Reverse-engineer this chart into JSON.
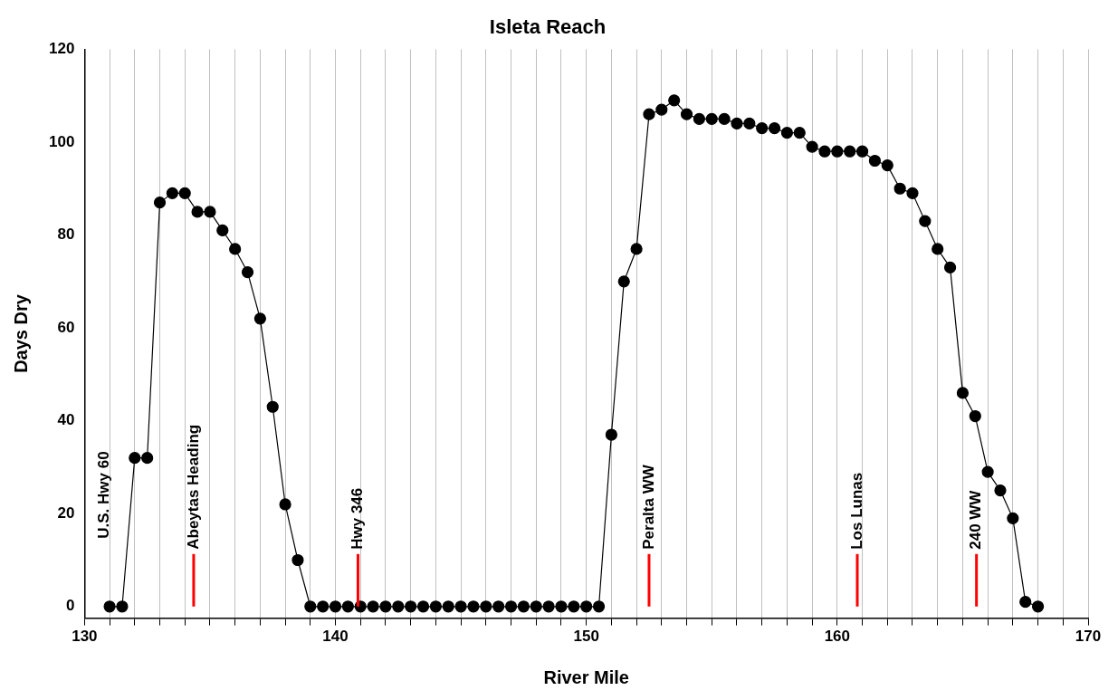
{
  "chart_data": {
    "type": "line",
    "title": "Isleta Reach",
    "xlabel": "River Mile",
    "ylabel": "Days Dry",
    "series": [
      {
        "color": "#000000",
        "x": [
          131,
          131.5,
          132,
          132.5,
          133,
          133.5,
          134,
          134.5,
          135,
          135.5,
          136,
          136.5,
          137,
          137.5,
          138,
          138.5,
          139,
          139.5,
          140,
          140.5,
          141,
          141.5,
          142,
          142.5,
          143,
          143.5,
          144,
          144.5,
          145,
          145.5,
          146,
          146.5,
          147,
          147.5,
          148,
          148.5,
          149,
          149.5,
          150,
          150.5,
          151,
          151.5,
          152,
          152.5,
          153,
          153.5,
          154,
          154.5,
          155,
          155.5,
          156,
          156.5,
          157,
          157.5,
          158,
          158.5,
          159,
          159.5,
          160,
          160.5,
          161,
          161.5,
          162,
          162.5,
          163,
          163.5,
          164,
          164.5,
          165,
          165.5,
          166,
          166.5,
          167,
          167.5,
          168
        ],
        "values": [
          0,
          0,
          32,
          32,
          87,
          89,
          89,
          85,
          85,
          81,
          77,
          72,
          62,
          43,
          22,
          10,
          0,
          0,
          0,
          0,
          0,
          0,
          0,
          0,
          0,
          0,
          0,
          0,
          0,
          0,
          0,
          0,
          0,
          0,
          0,
          0,
          0,
          0,
          0,
          0,
          37,
          70,
          77,
          106,
          107,
          109,
          106,
          105,
          105,
          105,
          104,
          104,
          103,
          103,
          102,
          102,
          99,
          98,
          98,
          98,
          98,
          96,
          95,
          90,
          89,
          83,
          77,
          73,
          46,
          41,
          29,
          25,
          19,
          1,
          0
        ]
      }
    ],
    "xlim": [
      130,
      170
    ],
    "ylim": [
      -2.5,
      120
    ],
    "xticks": [
      130,
      {
        "value": 131,
        "label": null
      },
      {
        "value": 132,
        "label": null
      },
      {
        "value": 133,
        "label": null
      },
      {
        "value": 134,
        "label": null
      },
      {
        "value": 135,
        "label": null
      },
      {
        "value": 136,
        "label": null
      },
      {
        "value": 137,
        "label": null
      },
      {
        "value": 138,
        "label": null
      },
      {
        "value": 139,
        "label": null
      },
      140,
      {
        "value": 141,
        "label": null
      },
      {
        "value": 142,
        "label": null
      },
      {
        "value": 143,
        "label": null
      },
      {
        "value": 144,
        "label": null
      },
      {
        "value": 145,
        "label": null
      },
      {
        "value": 146,
        "label": null
      },
      {
        "value": 147,
        "label": null
      },
      {
        "value": 148,
        "label": null
      },
      {
        "value": 149,
        "label": null
      },
      150,
      {
        "value": 151,
        "label": null
      },
      {
        "value": 152,
        "label": null
      },
      {
        "value": 153,
        "label": null
      },
      {
        "value": 154,
        "label": null
      },
      {
        "value": 155,
        "label": null
      },
      {
        "value": 156,
        "label": null
      },
      {
        "value": 157,
        "label": null
      },
      {
        "value": 158,
        "label": null
      },
      {
        "value": 159,
        "label": null
      },
      160,
      {
        "value": 161,
        "label": null
      },
      {
        "value": 162,
        "label": null
      },
      {
        "value": 163,
        "label": null
      },
      {
        "value": 164,
        "label": null
      },
      {
        "value": 165,
        "label": null
      },
      {
        "value": 166,
        "label": null
      },
      {
        "value": 167,
        "label": null
      },
      {
        "value": 168,
        "label": null
      },
      {
        "value": 169,
        "label": null
      },
      170
    ],
    "yticks": [
      0,
      20,
      40,
      60,
      80,
      100,
      120
    ],
    "grid": "x",
    "marker": "circle",
    "line_style": "solid",
    "legend": false,
    "ref_lines": [
      {
        "axis": "x",
        "value": 134.35,
        "label": "Abeytas Heading",
        "color": "#ff0000"
      },
      {
        "axis": "x",
        "value": 140.9,
        "label": "Hwy 346",
        "color": "#ff0000"
      },
      {
        "axis": "x",
        "value": 152.5,
        "label": "Peralta WW",
        "color": "#ff0000"
      },
      {
        "axis": "x",
        "value": 160.8,
        "label": "Los Lunas",
        "color": "#ff0000"
      },
      {
        "axis": "x",
        "value": 165.55,
        "label": "240 WW",
        "color": "#ff0000"
      }
    ],
    "annotations": [
      "U.S. Hwy 60"
    ]
  }
}
